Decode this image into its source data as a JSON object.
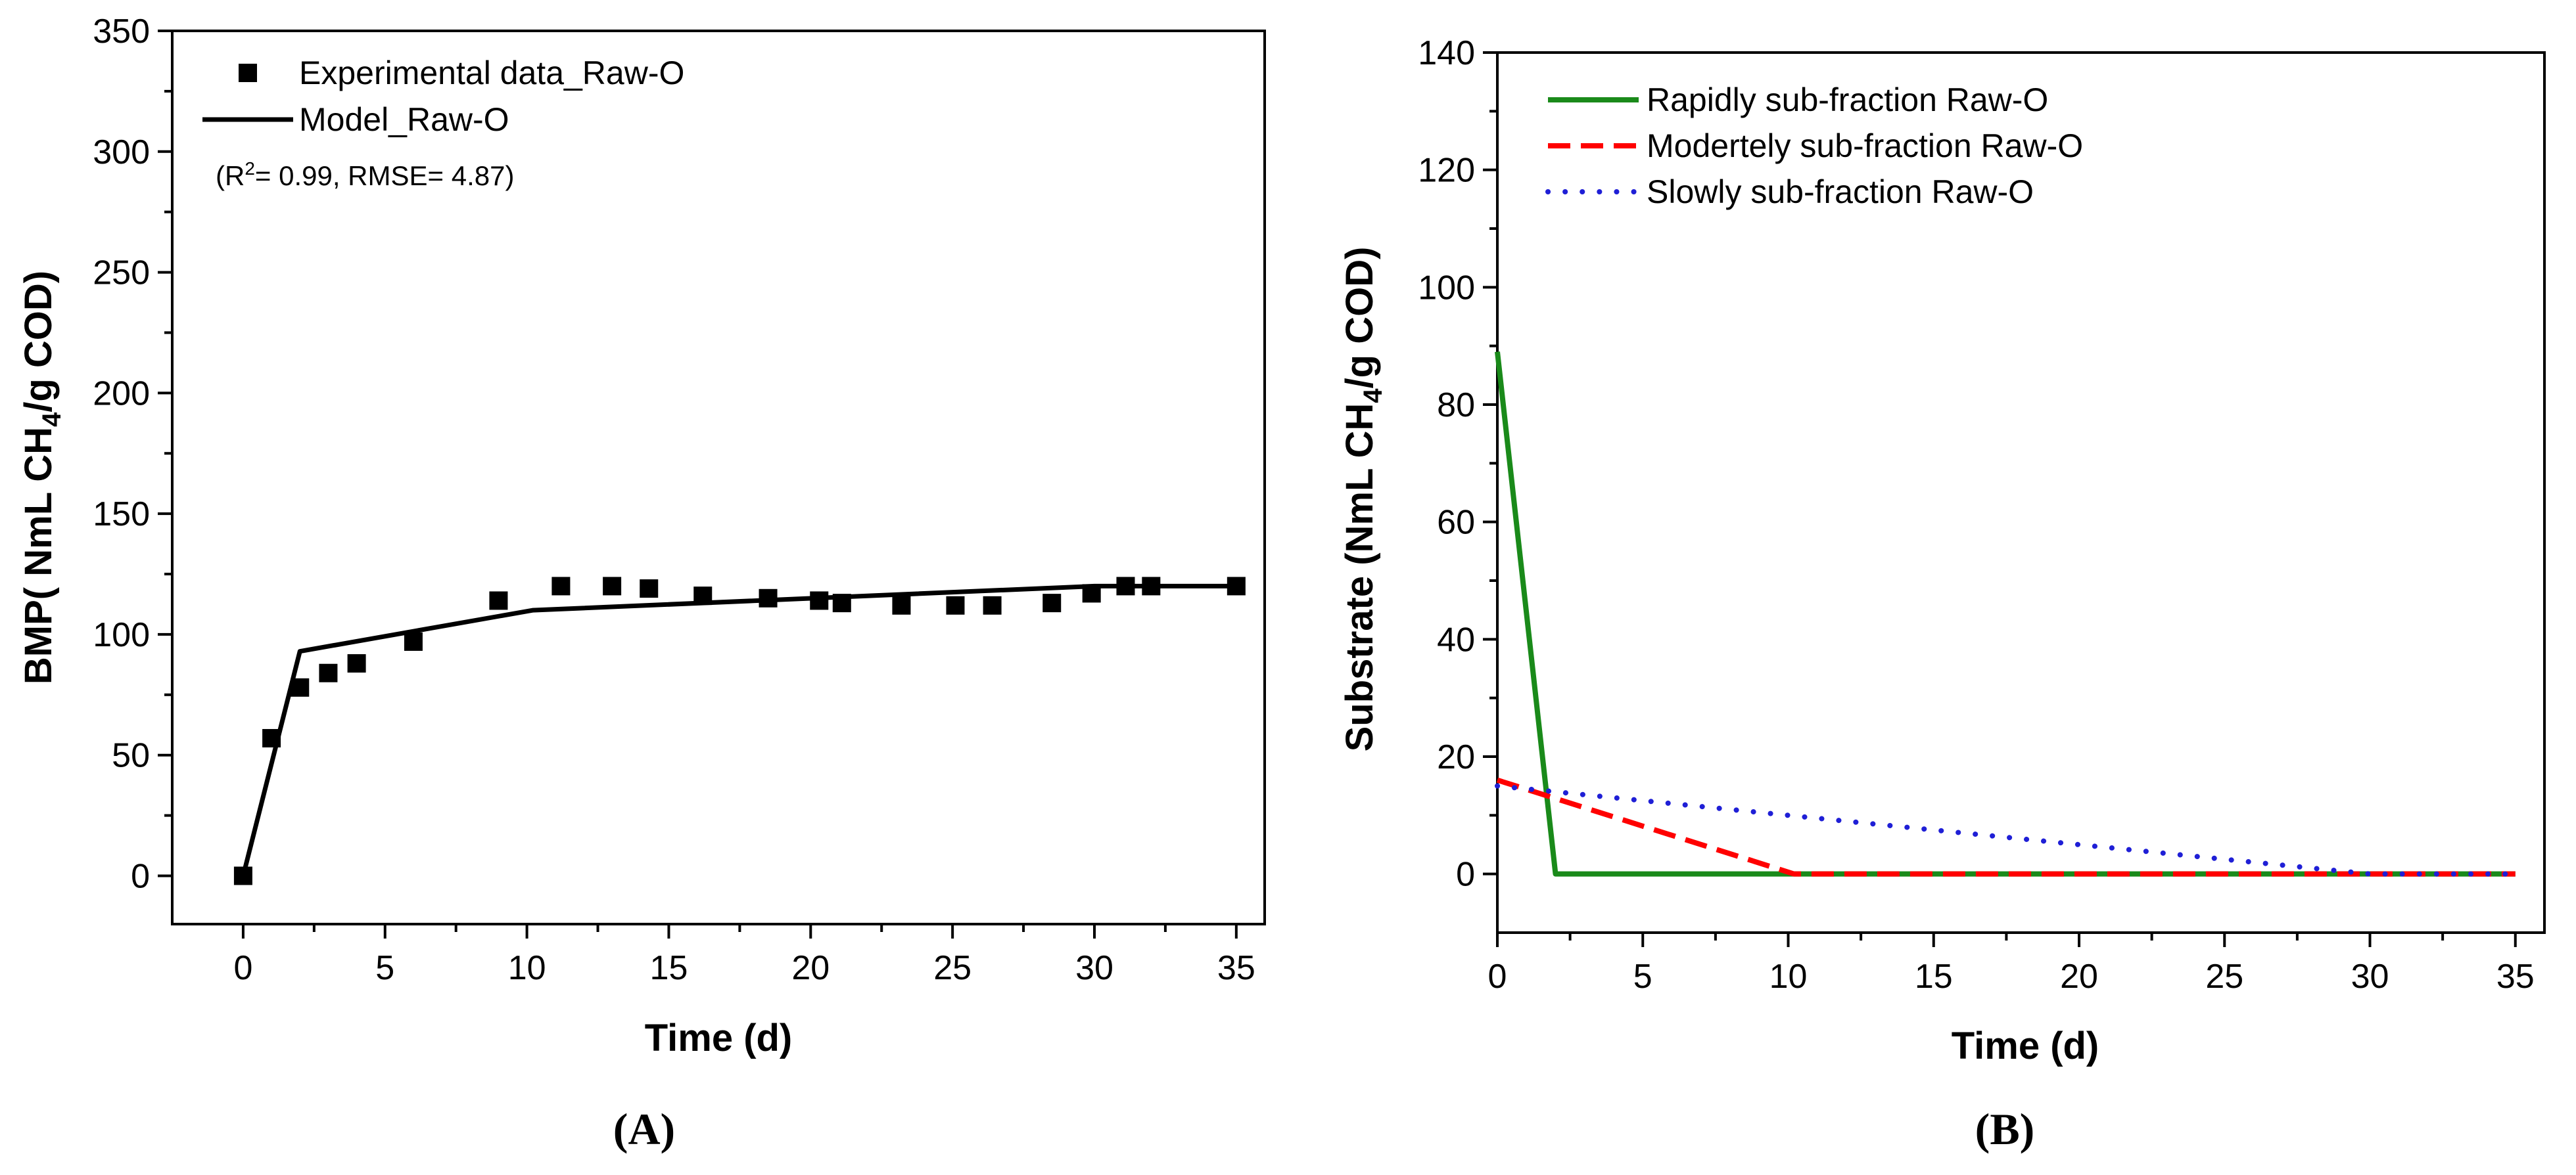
{
  "chart_data": [
    {
      "type": "scatter",
      "panel_label": "(A)",
      "xlabel": "Time (d)",
      "ylabel_prefix": "BMP( NmL CH",
      "ylabel_sub": "4",
      "ylabel_suffix": "/g COD)",
      "xlim": [
        -2.5,
        36
      ],
      "ylim": [
        -20,
        350
      ],
      "xticks": [
        0,
        5,
        10,
        15,
        20,
        25,
        30,
        35
      ],
      "yticks": [
        0,
        50,
        100,
        150,
        200,
        250,
        300,
        350
      ],
      "legend_position": "top-left",
      "annotation": {
        "prefix": "(R",
        "sup": "2",
        "suffix": "= 0.99, RMSE= 4.87)"
      },
      "series": [
        {
          "name": "Experimental data_Raw-O",
          "kind": "markers",
          "color": "#000000",
          "x": [
            0,
            1,
            2,
            3,
            4,
            6,
            9,
            11.2,
            13,
            14.3,
            16.2,
            18.5,
            20.3,
            21.1,
            23.2,
            25.1,
            26.4,
            28.5,
            29.9,
            31.1,
            32,
            35
          ],
          "y": [
            0,
            57,
            78,
            84,
            88,
            97,
            114,
            120,
            120,
            119,
            116,
            115,
            114,
            113,
            112,
            112,
            112,
            113,
            117,
            120,
            120,
            120
          ]
        },
        {
          "name": "Model_Raw-O",
          "kind": "line",
          "color": "#000000",
          "x": [
            0,
            2,
            10.2,
            30,
            35
          ],
          "y": [
            0,
            93,
            110,
            120,
            120
          ]
        }
      ]
    },
    {
      "type": "line",
      "panel_label": "(B)",
      "xlabel": "Time (d)",
      "ylabel_prefix": "Substrate (NmL CH",
      "ylabel_sub": "4",
      "ylabel_suffix": "/g COD)",
      "xlim": [
        0,
        36
      ],
      "ylim": [
        -10,
        140
      ],
      "xticks": [
        0,
        5,
        10,
        15,
        20,
        25,
        30,
        35
      ],
      "yticks": [
        0,
        20,
        40,
        60,
        80,
        100,
        120,
        140
      ],
      "legend_position": "top-left",
      "series": [
        {
          "name": "Rapidly sub-fraction Raw-O",
          "style": "solid",
          "color": "#1a8a1a",
          "x": [
            0,
            2,
            35
          ],
          "y": [
            89,
            0,
            0
          ]
        },
        {
          "name": "Modertely sub-fraction Raw-O",
          "style": "dashed",
          "color": "#ff0000",
          "x": [
            0,
            10.2,
            35
          ],
          "y": [
            16,
            0,
            0
          ]
        },
        {
          "name": "Slowly sub-fraction Raw-O",
          "style": "dotted",
          "color": "#1f1fd6",
          "x": [
            0,
            30,
            35
          ],
          "y": [
            15,
            0,
            0
          ]
        }
      ]
    }
  ]
}
